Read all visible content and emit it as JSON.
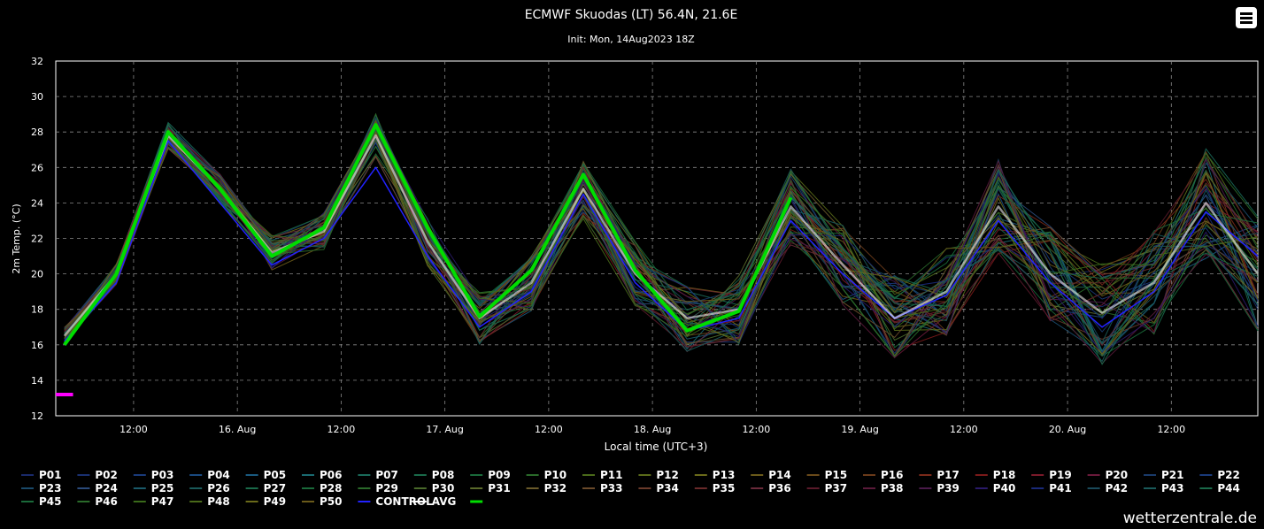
{
  "chart_data": {
    "type": "line",
    "title": "ECMWF Skuodas (LT) 56.4N, 21.6E",
    "subtitle": "Init: Mon, 14Aug2023 18Z",
    "xlabel": "Local time (UTC+3)",
    "ylabel": "2m Temp. (°C)",
    "ylim": [
      12,
      32
    ],
    "yticks": [
      "12",
      "14",
      "16",
      "18",
      "20",
      "22",
      "24",
      "26",
      "28",
      "30",
      "32"
    ],
    "xticks": [
      {
        "label": "12:00",
        "hour": 12
      },
      {
        "label": "16. Aug",
        "hour": 24
      },
      {
        "label": "12:00",
        "hour": 36
      },
      {
        "label": "17. Aug",
        "hour": 48
      },
      {
        "label": "12:00",
        "hour": 60
      },
      {
        "label": "18. Aug",
        "hour": 72
      },
      {
        "label": "12:00",
        "hour": 84
      },
      {
        "label": "19. Aug",
        "hour": 96
      },
      {
        "label": "12:00",
        "hour": 108
      },
      {
        "label": "20. Aug",
        "hour": 120
      },
      {
        "label": "12:00",
        "hour": 132
      }
    ],
    "xrange_hours": [
      3,
      142
    ],
    "grid": true,
    "legend": "bottom",
    "series": [
      {
        "name": "AVG",
        "color": "#ffffff",
        "hours": [
          4,
          10,
          16,
          22,
          28,
          34,
          40,
          46,
          52,
          58,
          64,
          70,
          76,
          82,
          88,
          94,
          100,
          106,
          112,
          118,
          124,
          130,
          136,
          142
        ],
        "values": [
          16.5,
          20.0,
          27.8,
          24.8,
          21.2,
          22.4,
          27.8,
          21.8,
          17.5,
          19.5,
          24.8,
          20.0,
          17.5,
          18.0,
          23.8,
          20.5,
          17.5,
          19.0,
          23.8,
          20.0,
          17.8,
          19.5,
          24.0,
          20.0
        ]
      },
      {
        "name": "CONTROL",
        "color": "#2222ff",
        "hours": [
          4,
          10,
          16,
          22,
          28,
          34,
          40,
          46,
          52,
          58,
          64,
          70,
          76,
          82,
          88,
          94,
          100,
          106,
          112,
          118,
          124,
          130,
          136,
          142
        ],
        "values": [
          16.2,
          19.5,
          27.5,
          24.0,
          20.5,
          22.0,
          26.0,
          21.0,
          17.0,
          19.0,
          24.5,
          19.5,
          16.8,
          17.5,
          23.0,
          20.0,
          17.5,
          18.8,
          23.0,
          19.5,
          17.0,
          19.0,
          23.5,
          21.0
        ]
      },
      {
        "name": "",
        "color": "#00dd00",
        "hours": [
          4,
          10,
          16,
          22,
          28,
          34,
          40,
          46,
          52,
          58,
          64,
          70,
          76,
          82,
          88
        ],
        "values": [
          16.0,
          20.0,
          28.0,
          24.8,
          21.0,
          22.6,
          28.4,
          22.6,
          17.6,
          20.2,
          25.6,
          20.2,
          16.8,
          17.9,
          24.3
        ]
      }
    ],
    "min_marker": {
      "value": 13.2,
      "hours": [
        3,
        5
      ],
      "color": "#ff00ff"
    }
  },
  "legend_items": [
    {
      "label": "P01",
      "color": "#1a2a6a"
    },
    {
      "label": "P02",
      "color": "#1a3070"
    },
    {
      "label": "P03",
      "color": "#1a3a7a"
    },
    {
      "label": "P04",
      "color": "#1a4a80"
    },
    {
      "label": "P05",
      "color": "#1a5a80"
    },
    {
      "label": "P06",
      "color": "#1a6a70"
    },
    {
      "label": "P07",
      "color": "#1a6a5a"
    },
    {
      "label": "P08",
      "color": "#1a6a4a"
    },
    {
      "label": "P09",
      "color": "#1a6a3a"
    },
    {
      "label": "P10",
      "color": "#2a6a2a"
    },
    {
      "label": "P11",
      "color": "#4a6a1a"
    },
    {
      "label": "P12",
      "color": "#5a6a1a"
    },
    {
      "label": "P13",
      "color": "#6a6a1a"
    },
    {
      "label": "P14",
      "color": "#6a5a1a"
    },
    {
      "label": "P15",
      "color": "#6a4a1a"
    },
    {
      "label": "P16",
      "color": "#6a3a1a"
    },
    {
      "label": "P17",
      "color": "#7a2a1a"
    },
    {
      "label": "P18",
      "color": "#7a1a1a"
    },
    {
      "label": "P19",
      "color": "#7a1a2a"
    },
    {
      "label": "P20",
      "color": "#6a1a3a"
    },
    {
      "label": "P21",
      "color": "#1a3a6a"
    },
    {
      "label": "P22",
      "color": "#1a3a7a"
    },
    {
      "label": "P23",
      "color": "#1a4a6a"
    },
    {
      "label": "P24",
      "color": "#2a4a7a"
    },
    {
      "label": "P25",
      "color": "#1a5a6a"
    },
    {
      "label": "P26",
      "color": "#1a5a5a"
    },
    {
      "label": "P27",
      "color": "#1a6a4a"
    },
    {
      "label": "P28",
      "color": "#1a6a3a"
    },
    {
      "label": "P29",
      "color": "#2a6a2a"
    },
    {
      "label": "P30",
      "color": "#4a6a2a"
    },
    {
      "label": "P31",
      "color": "#5a6a2a"
    },
    {
      "label": "P32",
      "color": "#6a5a2a"
    },
    {
      "label": "P33",
      "color": "#6a4a2a"
    },
    {
      "label": "P34",
      "color": "#6a3a2a"
    },
    {
      "label": "P35",
      "color": "#6a2a2a"
    },
    {
      "label": "P36",
      "color": "#6a2a3a"
    },
    {
      "label": "P37",
      "color": "#5a1a2a"
    },
    {
      "label": "P38",
      "color": "#5a1a3a"
    },
    {
      "label": "P39",
      "color": "#4a1a4a"
    },
    {
      "label": "P40",
      "color": "#2a1a6a"
    },
    {
      "label": "P41",
      "color": "#1a2a7a"
    },
    {
      "label": "P42",
      "color": "#1a4a5a"
    },
    {
      "label": "P43",
      "color": "#1a5a5a"
    },
    {
      "label": "P44",
      "color": "#1a6a4a"
    },
    {
      "label": "P45",
      "color": "#1a6a3a"
    },
    {
      "label": "P46",
      "color": "#2a6a2a"
    },
    {
      "label": "P47",
      "color": "#3a6a1a"
    },
    {
      "label": "P48",
      "color": "#4a6a1a"
    },
    {
      "label": "P49",
      "color": "#6a6a1a"
    },
    {
      "label": "P50",
      "color": "#6a5a1a"
    },
    {
      "label": "CONTROL",
      "color": "#2222ff"
    },
    {
      "label": "AVG",
      "color": "#ffffff"
    },
    {
      "label": "",
      "color": "#00dd00"
    }
  ],
  "credit": "wetterzentrale.de",
  "menu_icon": "hamburger-menu-icon"
}
